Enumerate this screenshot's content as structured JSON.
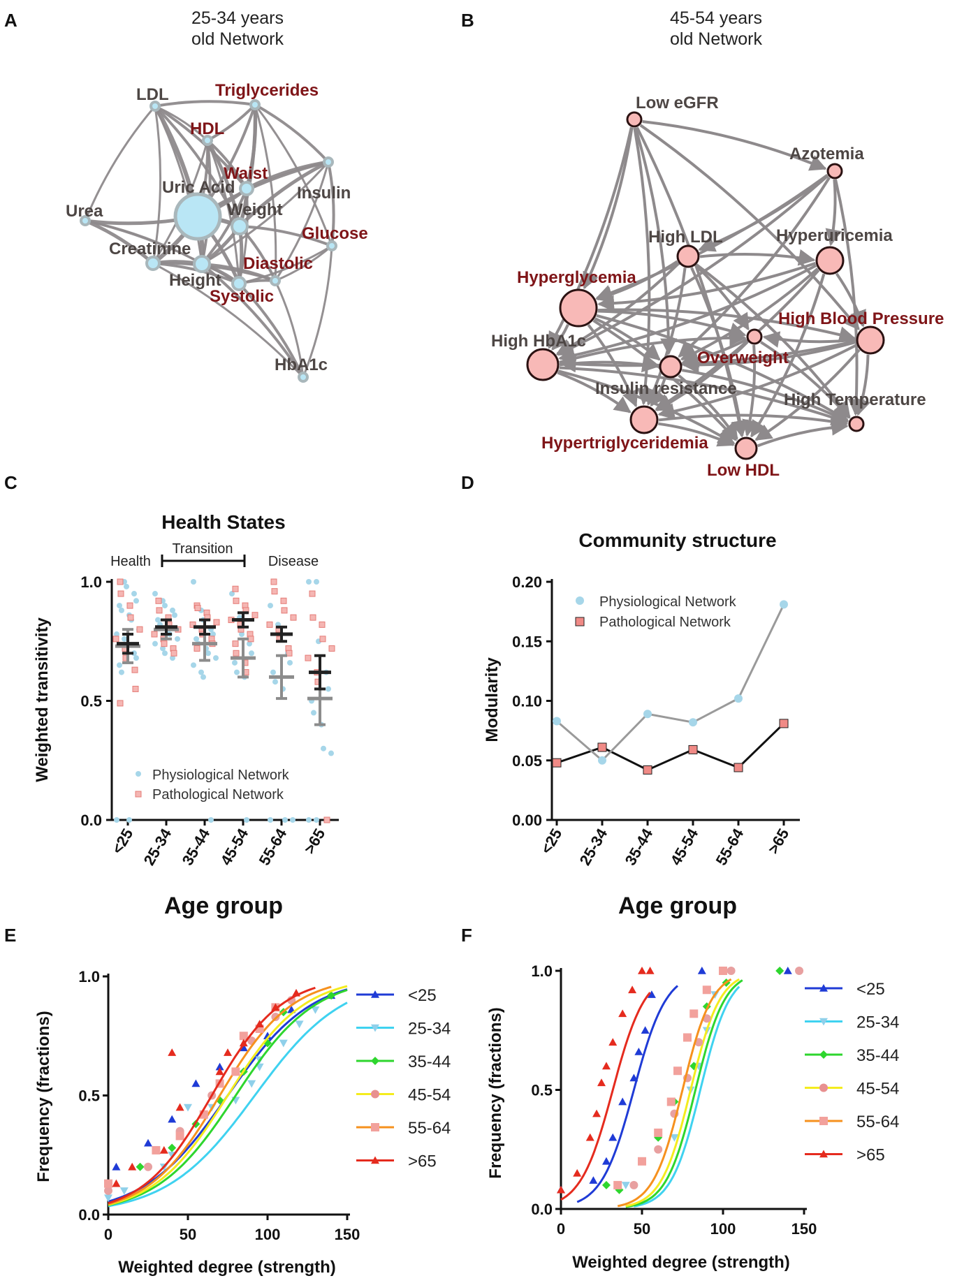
{
  "panels": {
    "A": {
      "letter": "A",
      "title1": "25-34 years",
      "title2": "old Network"
    },
    "B": {
      "letter": "B",
      "title1": "45-54 years",
      "title2": "old Network"
    },
    "C": {
      "letter": "C"
    },
    "D": {
      "letter": "D"
    },
    "E": {
      "letter": "E"
    },
    "F": {
      "letter": "F"
    }
  },
  "colors": {
    "edge": "#8e8a8c",
    "node_physio": "#b9e6f5",
    "node_physio_stroke": "#a9b7bb",
    "node_patho": "#f8b9b7",
    "node_patho_stroke": "#2b1212",
    "label_dark": "#4d4644",
    "label_red": "#7f1518",
    "physio_marker": "#a6d6e9",
    "patho_marker": "#ef8c87",
    "mean_dark": "#222222",
    "mean_grey": "#8c8c8c",
    "series_lt25": "#1f3bd6",
    "series_25_34": "#3fd2f0",
    "series_35_44": "#2ed62e",
    "series_45_54": "#f4ec1e",
    "series_55_64": "#f6911e",
    "series_gt65": "#e52b1e"
  },
  "network_a": {
    "nodes": [
      {
        "id": "LDL",
        "label": "LDL",
        "kind": "dark",
        "size": 1
      },
      {
        "id": "Trig",
        "label": "Triglycerides",
        "kind": "red",
        "size": 1
      },
      {
        "id": "HDL",
        "label": "HDL",
        "kind": "red",
        "size": 1
      },
      {
        "id": "Waist",
        "label": "Waist",
        "kind": "red",
        "size": 2
      },
      {
        "id": "UricAcid",
        "label": "Uric Acid",
        "kind": "dark",
        "size": 6
      },
      {
        "id": "Insulin",
        "label": "Insulin",
        "kind": "dark",
        "size": 1
      },
      {
        "id": "Urea",
        "label": "Urea",
        "kind": "dark",
        "size": 1
      },
      {
        "id": "Weight",
        "label": "Weight",
        "kind": "dark",
        "size": 3
      },
      {
        "id": "Glucose",
        "label": "Glucose",
        "kind": "red",
        "size": 1
      },
      {
        "id": "Creatinine",
        "label": "Creatinine",
        "kind": "dark",
        "size": 2
      },
      {
        "id": "Diastolic",
        "label": "Diastolic",
        "kind": "red",
        "size": 1
      },
      {
        "id": "Height",
        "label": "Height",
        "kind": "dark",
        "size": 3
      },
      {
        "id": "Systolic",
        "label": "Systolic",
        "kind": "red",
        "size": 2
      },
      {
        "id": "HbA1c",
        "label": "HbA1c",
        "kind": "dark",
        "size": 1
      }
    ]
  },
  "network_b": {
    "nodes": [
      {
        "id": "LoweGFR",
        "label": "Low eGFR",
        "kind": "dark",
        "size": 2
      },
      {
        "id": "Azotemia",
        "label": "Azotemia",
        "kind": "dark",
        "size": 2
      },
      {
        "id": "HighLDL",
        "label": "High LDL",
        "kind": "dark",
        "size": 3
      },
      {
        "id": "Hyperuricemia",
        "label": "Hyperuricemia",
        "kind": "dark",
        "size": 4
      },
      {
        "id": "Hyperglycemia",
        "label": "Hyperglycemia",
        "kind": "red",
        "size": 6
      },
      {
        "id": "HighBP",
        "label": "High Blood Pressure",
        "kind": "red",
        "size": 4
      },
      {
        "id": "HighHbA1c",
        "label": "High HbA1c",
        "kind": "dark",
        "size": 5
      },
      {
        "id": "Overweight",
        "label": "Overweight",
        "kind": "red",
        "size": 2
      },
      {
        "id": "InsulinRes",
        "label": "Insulin resistance",
        "kind": "dark",
        "size": 3
      },
      {
        "id": "HighTemp",
        "label": "High Temperature",
        "kind": "dark",
        "size": 2
      },
      {
        "id": "Hypertrig",
        "label": "Hypertriglyceridemia",
        "kind": "red",
        "size": 4
      },
      {
        "id": "LowHDL",
        "label": "Low HDL",
        "kind": "red",
        "size": 3
      }
    ]
  },
  "chart_data": [
    {
      "panel": "C",
      "type": "scatter",
      "title": "Health States",
      "xlabel": "Age group",
      "ylabel": "Weighted transitivity",
      "categories": [
        "<25",
        "25-34",
        "35-44",
        "45-54",
        "55-64",
        ">65"
      ],
      "ylim": [
        0.0,
        1.0
      ],
      "yticks": [
        "0.0",
        "0.5",
        "1.0"
      ],
      "annotations": {
        "health": "Health",
        "transition": "Transition",
        "disease": "Disease"
      },
      "legend": {
        "physio": "Physiological Network",
        "patho": "Pathological Network"
      },
      "series": [
        {
          "name": "Physiological Network",
          "mean": [
            0.73,
            0.8,
            0.74,
            0.68,
            0.6,
            0.51
          ],
          "err": [
            0.07,
            0.04,
            0.07,
            0.08,
            0.09,
            0.11
          ]
        },
        {
          "name": "Pathological Network",
          "mean": [
            0.74,
            0.81,
            0.81,
            0.84,
            0.78,
            0.62
          ],
          "err": [
            0.04,
            0.03,
            0.03,
            0.03,
            0.03,
            0.07
          ]
        }
      ],
      "points_physio": [
        [
          0.0,
          1.0,
          0.98,
          0.95,
          0.92,
          0.9,
          0.88,
          0.86,
          0.84,
          0.8,
          0.78,
          0.76,
          0.72,
          0.7,
          0.68,
          0.65,
          0.62,
          0.0
        ],
        [
          0.95,
          0.92,
          0.9,
          0.88,
          0.86,
          0.84,
          0.82,
          0.8,
          0.78,
          0.76,
          0.74,
          0.72,
          0.7,
          0.68
        ],
        [
          1.0,
          0.88,
          0.84,
          0.8,
          0.78,
          0.76,
          0.74,
          0.72,
          0.7,
          0.68,
          0.65,
          0.62,
          0.6,
          0.0
        ],
        [
          0.95,
          0.85,
          0.78,
          0.74,
          0.7,
          0.66,
          0.62,
          0.6,
          0.0
        ],
        [
          0.9,
          0.82,
          0.78,
          0.7,
          0.66,
          0.62,
          0.58,
          0.55,
          0.0,
          0.0,
          0.0
        ],
        [
          1.0,
          1.0,
          0.75,
          0.62,
          0.55,
          0.5,
          0.45,
          0.4,
          0.3,
          0.28,
          0.0,
          0.0
        ]
      ],
      "points_patho": [
        [
          1.0,
          0.95,
          0.9,
          0.85,
          0.8,
          0.76,
          0.72,
          0.68,
          0.63,
          0.55,
          0.49
        ],
        [
          0.92,
          0.88,
          0.85,
          0.82,
          0.8,
          0.78,
          0.76,
          0.74,
          0.72,
          0.7
        ],
        [
          0.9,
          0.89,
          0.87,
          0.85,
          0.83,
          0.82,
          0.8,
          0.78,
          0.76,
          0.74,
          0.72
        ],
        [
          0.97,
          0.92,
          0.9,
          0.88,
          0.86,
          0.84,
          0.82,
          0.8,
          0.78,
          0.76,
          0.74,
          0.7,
          0.66,
          0.62
        ],
        [
          1.0,
          0.96,
          0.92,
          0.88,
          0.85,
          0.82,
          0.8,
          0.76,
          0.72,
          0.7
        ],
        [
          0.95,
          0.85,
          0.82,
          0.76,
          0.72,
          0.68,
          0.62,
          0.58,
          0.0
        ]
      ]
    },
    {
      "panel": "D",
      "type": "line",
      "title": "Community structure",
      "xlabel": "Age group",
      "ylabel": "Modularity",
      "categories": [
        "<25",
        "25-34",
        "35-44",
        "45-54",
        "55-64",
        ">65"
      ],
      "ylim": [
        0.0,
        0.2
      ],
      "yticks": [
        "0.00",
        "0.05",
        "0.10",
        "0.15",
        "0.20"
      ],
      "series": [
        {
          "name": "Physiological Network",
          "values": [
            0.083,
            0.05,
            0.089,
            0.082,
            0.102,
            0.181
          ]
        },
        {
          "name": "Pathological Network",
          "values": [
            0.048,
            0.061,
            0.042,
            0.059,
            0.044,
            0.081
          ]
        }
      ]
    },
    {
      "panel": "E",
      "type": "scatter",
      "xlabel": "Weighted degree (strength)",
      "ylabel": "Frequency (fractions)",
      "xlim": [
        0,
        150
      ],
      "ylim": [
        0.0,
        1.0
      ],
      "xticks": [
        "0",
        "50",
        "100",
        "150"
      ],
      "yticks": [
        "0.0",
        "0.5",
        "1.0"
      ],
      "series": [
        {
          "name": "<25",
          "mid": 75,
          "k": 0.038,
          "xmax": 150,
          "points": [
            [
              0,
              0.13
            ],
            [
              5,
              0.2
            ],
            [
              25,
              0.3
            ],
            [
              40,
              0.4
            ],
            [
              55,
              0.55
            ],
            [
              70,
              0.62
            ],
            [
              85,
              0.7
            ],
            [
              100,
              0.75
            ],
            [
              115,
              0.86
            ],
            [
              140,
              0.92
            ]
          ]
        },
        {
          "name": "25-34",
          "mid": 92,
          "k": 0.036,
          "xmax": 150,
          "points": [
            [
              0,
              0.07
            ],
            [
              10,
              0.1
            ],
            [
              35,
              0.2
            ],
            [
              40,
              0.25
            ],
            [
              50,
              0.45
            ],
            [
              65,
              0.45
            ],
            [
              80,
              0.48
            ],
            [
              90,
              0.55
            ],
            [
              95,
              0.62
            ],
            [
              95,
              0.65
            ],
            [
              110,
              0.72
            ],
            [
              120,
              0.8
            ],
            [
              130,
              0.86
            ]
          ]
        },
        {
          "name": "35-44",
          "mid": 80,
          "k": 0.04,
          "xmax": 150,
          "points": [
            [
              0,
              0.1
            ],
            [
              20,
              0.2
            ],
            [
              40,
              0.28
            ],
            [
              55,
              0.38
            ],
            [
              70,
              0.48
            ],
            [
              85,
              0.6
            ],
            [
              100,
              0.72
            ],
            [
              110,
              0.85
            ],
            [
              140,
              0.92
            ]
          ]
        },
        {
          "name": "45-54",
          "mid": 75,
          "k": 0.042,
          "xmax": 150,
          "points": [
            [
              0,
              0.1
            ],
            [
              25,
              0.2
            ],
            [
              45,
              0.35
            ],
            [
              65,
              0.5
            ],
            [
              80,
              0.6
            ],
            [
              90,
              0.73
            ],
            [
              105,
              0.83
            ],
            [
              115,
              0.9
            ]
          ]
        },
        {
          "name": "55-64",
          "mid": 70,
          "k": 0.044,
          "xmax": 140,
          "points": [
            [
              0,
              0.13
            ],
            [
              30,
              0.27
            ],
            [
              45,
              0.33
            ],
            [
              60,
              0.42
            ],
            [
              70,
              0.55
            ],
            [
              80,
              0.6
            ],
            [
              85,
              0.75
            ],
            [
              95,
              0.78
            ],
            [
              105,
              0.87
            ]
          ]
        },
        {
          "name": ">65",
          "mid": 65,
          "k": 0.046,
          "xmax": 130,
          "points": [
            [
              5,
              0.13
            ],
            [
              15,
              0.2
            ],
            [
              35,
              0.27
            ],
            [
              40,
              0.68
            ],
            [
              45,
              0.45
            ],
            [
              70,
              0.6
            ],
            [
              75,
              0.68
            ],
            [
              85,
              0.72
            ],
            [
              95,
              0.8
            ],
            [
              105,
              0.87
            ],
            [
              118,
              0.93
            ]
          ]
        }
      ]
    },
    {
      "panel": "F",
      "type": "scatter",
      "xlabel": "Weighted degree (strength)",
      "ylabel": "Frequency (fractions)",
      "xlim": [
        0,
        150
      ],
      "ylim": [
        0.0,
        1.0
      ],
      "xticks": [
        "0",
        "50",
        "100",
        "150"
      ],
      "yticks": [
        "0.0",
        "0.5",
        "1.0"
      ],
      "series": [
        {
          "name": "<25",
          "mid": 45,
          "k": 0.1,
          "xmin": 10,
          "xmax": 72,
          "points": [
            [
              0,
              0.08
            ],
            [
              20,
              0.12
            ],
            [
              28,
              0.2
            ],
            [
              32,
              0.3
            ],
            [
              38,
              0.45
            ],
            [
              45,
              0.55
            ],
            [
              48,
              0.66
            ],
            [
              52,
              0.75
            ],
            [
              56,
              0.9
            ],
            [
              87,
              1.0
            ],
            [
              140,
              1.0
            ]
          ]
        },
        {
          "name": "25-34",
          "mid": 86,
          "k": 0.11,
          "xmin": 45,
          "xmax": 110,
          "points": [
            [
              40,
              0.1
            ],
            [
              70,
              0.3
            ],
            [
              80,
              0.5
            ],
            [
              85,
              0.6
            ],
            [
              90,
              0.75
            ],
            [
              95,
              0.9
            ]
          ]
        },
        {
          "name": "35-44",
          "mid": 83,
          "k": 0.11,
          "xmin": 40,
          "xmax": 112,
          "points": [
            [
              28,
              0.1
            ],
            [
              36,
              0.08
            ],
            [
              60,
              0.3
            ],
            [
              70,
              0.45
            ],
            [
              82,
              0.6
            ],
            [
              90,
              0.85
            ],
            [
              102,
              0.95
            ],
            [
              135,
              1.0
            ]
          ]
        },
        {
          "name": "45-54",
          "mid": 80,
          "k": 0.11,
          "xmin": 40,
          "xmax": 110,
          "points": [
            [
              45,
              0.1
            ],
            [
              60,
              0.25
            ],
            [
              70,
              0.4
            ],
            [
              78,
              0.55
            ],
            [
              85,
              0.7
            ],
            [
              90,
              0.8
            ],
            [
              105,
              1.0
            ],
            [
              147,
              1.0
            ]
          ]
        },
        {
          "name": "55-64",
          "mid": 75,
          "k": 0.11,
          "xmin": 35,
          "xmax": 105,
          "points": [
            [
              35,
              0.1
            ],
            [
              50,
              0.2
            ],
            [
              60,
              0.32
            ],
            [
              68,
              0.45
            ],
            [
              72,
              0.58
            ],
            [
              78,
              0.72
            ],
            [
              82,
              0.82
            ],
            [
              90,
              0.92
            ],
            [
              100,
              1.0
            ]
          ]
        },
        {
          "name": ">65",
          "mid": 32,
          "k": 0.1,
          "xmin": 0,
          "xmax": 55,
          "points": [
            [
              0,
              0.08
            ],
            [
              10,
              0.15
            ],
            [
              18,
              0.3
            ],
            [
              22,
              0.4
            ],
            [
              25,
              0.53
            ],
            [
              28,
              0.6
            ],
            [
              32,
              0.7
            ],
            [
              38,
              0.82
            ],
            [
              44,
              0.92
            ],
            [
              50,
              1.0
            ],
            [
              55,
              1.0
            ]
          ]
        }
      ]
    }
  ]
}
